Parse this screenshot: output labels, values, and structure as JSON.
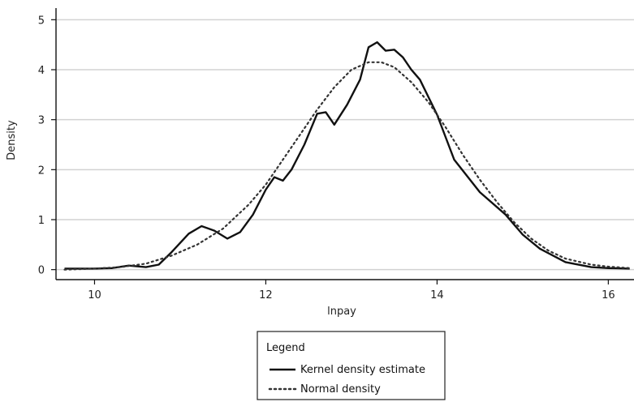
{
  "chart_data": {
    "type": "line",
    "xlabel": "lnpay",
    "ylabel": "Density",
    "xlim": [
      9.55,
      16.3
    ],
    "ylim": [
      -0.2,
      5.2
    ],
    "xticks": [
      10,
      12,
      14,
      16
    ],
    "yticks": [
      0,
      1,
      2,
      3,
      4,
      5
    ],
    "grid": "horizontal",
    "legend": {
      "title": "Legend",
      "placement": "bottom-center",
      "entries": [
        {
          "label": "Kernel density estimate",
          "style": "solid"
        },
        {
          "label": "Normal density",
          "style": "dotted"
        }
      ]
    },
    "series": [
      {
        "name": "Kernel density estimate",
        "style": "solid",
        "color": "#111111",
        "x": [
          9.65,
          10.0,
          10.2,
          10.4,
          10.6,
          10.75,
          10.9,
          11.1,
          11.25,
          11.4,
          11.55,
          11.7,
          11.85,
          12.0,
          12.1,
          12.2,
          12.3,
          12.45,
          12.6,
          12.7,
          12.8,
          12.95,
          13.1,
          13.2,
          13.3,
          13.4,
          13.5,
          13.6,
          13.7,
          13.8,
          14.0,
          14.2,
          14.5,
          14.8,
          15.0,
          15.2,
          15.5,
          15.8,
          16.0,
          16.25
        ],
        "y": [
          0.02,
          0.02,
          0.03,
          0.08,
          0.05,
          0.1,
          0.35,
          0.72,
          0.87,
          0.78,
          0.62,
          0.75,
          1.1,
          1.6,
          1.85,
          1.78,
          2.0,
          2.5,
          3.12,
          3.15,
          2.9,
          3.3,
          3.8,
          4.45,
          4.55,
          4.38,
          4.4,
          4.25,
          4.0,
          3.8,
          3.1,
          2.2,
          1.55,
          1.1,
          0.7,
          0.42,
          0.15,
          0.05,
          0.03,
          0.02
        ]
      },
      {
        "name": "Normal density",
        "style": "dotted",
        "color": "#333333",
        "x": [
          9.65,
          10.0,
          10.3,
          10.6,
          10.9,
          11.2,
          11.5,
          11.8,
          12.0,
          12.2,
          12.4,
          12.6,
          12.8,
          13.0,
          13.2,
          13.35,
          13.5,
          13.7,
          13.9,
          14.1,
          14.3,
          14.5,
          14.7,
          14.9,
          15.1,
          15.3,
          15.5,
          15.8,
          16.0,
          16.25
        ],
        "y": [
          0.0,
          0.02,
          0.05,
          0.12,
          0.28,
          0.5,
          0.82,
          1.3,
          1.7,
          2.2,
          2.7,
          3.2,
          3.65,
          4.0,
          4.15,
          4.15,
          4.05,
          3.75,
          3.35,
          2.85,
          2.3,
          1.8,
          1.35,
          0.95,
          0.62,
          0.38,
          0.22,
          0.1,
          0.06,
          0.03
        ]
      }
    ]
  }
}
